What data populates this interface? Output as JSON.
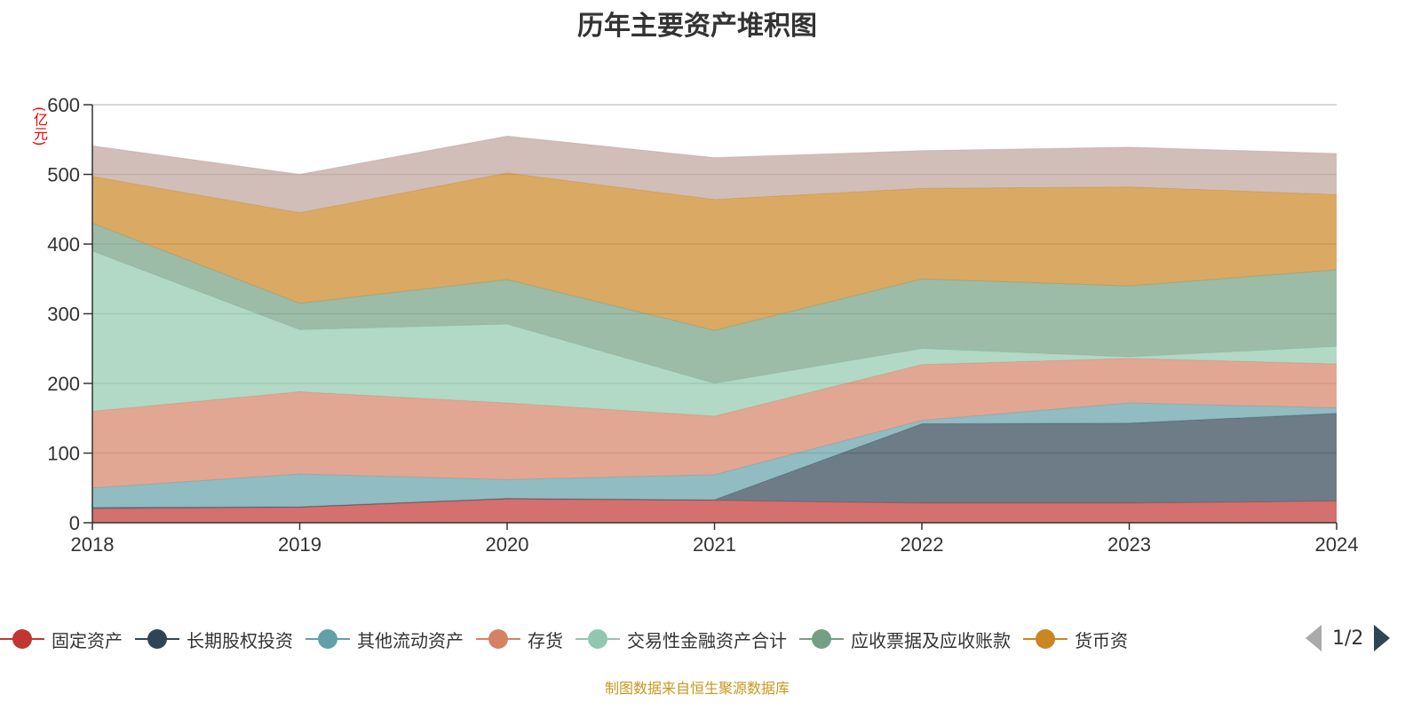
{
  "title": "历年主要资产堆积图",
  "source": "制图数据来自恒生聚源数据库",
  "legend_page": "1/2",
  "chart_data": {
    "type": "area",
    "stacked": true,
    "title": "历年主要资产堆积图",
    "ylabel": "(亿元)",
    "xlabel": "",
    "categories": [
      "2018",
      "2019",
      "2020",
      "2021",
      "2022",
      "2023",
      "2024"
    ],
    "ylim": [
      0,
      600
    ],
    "yticks": [
      0,
      100,
      200,
      300,
      400,
      500,
      600
    ],
    "grid": true,
    "legend_position": "bottom",
    "series": [
      {
        "name": "固定资产",
        "color": "#c23531",
        "values": [
          20,
          22,
          34,
          32,
          28,
          28,
          31
        ]
      },
      {
        "name": "长期股权投资",
        "color": "#2f4554",
        "values": [
          2,
          1,
          1,
          1,
          114,
          115,
          126
        ]
      },
      {
        "name": "其他流动资产",
        "color": "#61a0a8",
        "values": [
          28,
          47,
          27,
          36,
          5,
          29,
          8
        ]
      },
      {
        "name": "存货",
        "color": "#d48265",
        "values": [
          110,
          118,
          110,
          84,
          80,
          64,
          63
        ]
      },
      {
        "name": "交易性金融资产合计",
        "color": "#91c7ae",
        "values": [
          230,
          89,
          113,
          47,
          23,
          2,
          25
        ]
      },
      {
        "name": "应收票据及应收账款",
        "color": "#749f83",
        "values": [
          40,
          38,
          64,
          76,
          100,
          102,
          110
        ]
      },
      {
        "name": "货币资",
        "color": "#ca8622",
        "values": [
          67,
          130,
          153,
          188,
          130,
          142,
          108
        ]
      },
      {
        "color": "#bda29a",
        "values": [
          44,
          55,
          53,
          60,
          54,
          57,
          59
        ]
      }
    ]
  }
}
